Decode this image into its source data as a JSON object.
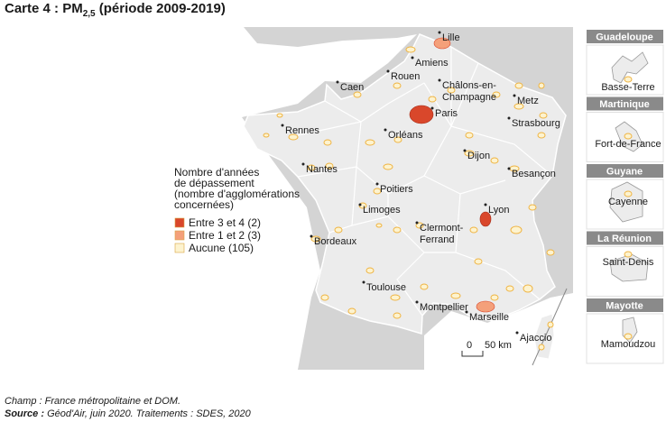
{
  "title": {
    "prefix": "Carte 4 : PM",
    "subscript": "2,5",
    "suffix": " (période 2009-2019)"
  },
  "legend": {
    "title_lines": [
      "Nombre d'années",
      "de dépassement",
      "(nombre d'agglomérations",
      "concernées)"
    ],
    "items": [
      {
        "label": "Entre 3 et 4 (2)",
        "color": "#d9472b"
      },
      {
        "label": "Entre 1 et 2 (3)",
        "color": "#f4a07a"
      },
      {
        "label": "Aucune (105)",
        "color": "#fdf3cf"
      }
    ]
  },
  "cities": [
    {
      "lines": [
        "Lille"
      ]
    },
    {
      "lines": [
        "Amiens"
      ]
    },
    {
      "lines": [
        "Rouen"
      ]
    },
    {
      "lines": [
        "Caen"
      ]
    },
    {
      "lines": [
        "Châlons-en-",
        "Champagne"
      ]
    },
    {
      "lines": [
        "Paris"
      ]
    },
    {
      "lines": [
        "Metz"
      ]
    },
    {
      "lines": [
        "Strasbourg"
      ]
    },
    {
      "lines": [
        "Rennes"
      ]
    },
    {
      "lines": [
        "Orléans"
      ]
    },
    {
      "lines": [
        "Dijon"
      ]
    },
    {
      "lines": [
        "Besançon"
      ]
    },
    {
      "lines": [
        "Nantes"
      ]
    },
    {
      "lines": [
        "Poitiers"
      ]
    },
    {
      "lines": [
        "Limoges"
      ]
    },
    {
      "lines": [
        "Lyon"
      ]
    },
    {
      "lines": [
        "Clermont-",
        "Ferrand"
      ]
    },
    {
      "lines": [
        "Bordeaux"
      ]
    },
    {
      "lines": [
        "Toulouse"
      ]
    },
    {
      "lines": [
        "Montpellier"
      ]
    },
    {
      "lines": [
        "Marseille"
      ]
    },
    {
      "lines": [
        "Ajaccio"
      ]
    }
  ],
  "dom": [
    {
      "name": "Guadeloupe",
      "city": "Basse-Terre"
    },
    {
      "name": "Martinique",
      "city": "Fort-de-France"
    },
    {
      "name": "Guyane",
      "city": "Cayenne"
    },
    {
      "name": "La Réunion",
      "city": "Saint-Denis"
    },
    {
      "name": "Mayotte",
      "city": "Mamoudzou"
    }
  ],
  "scale": {
    "start": "0",
    "end": "50 km"
  },
  "notes": {
    "champ_label": "Champ :",
    "champ_text": " France métropolitaine et DOM.",
    "source_label": "Source :",
    "source_text": " Géod'Air, juin 2020. Traitements : SDES, 2020"
  }
}
